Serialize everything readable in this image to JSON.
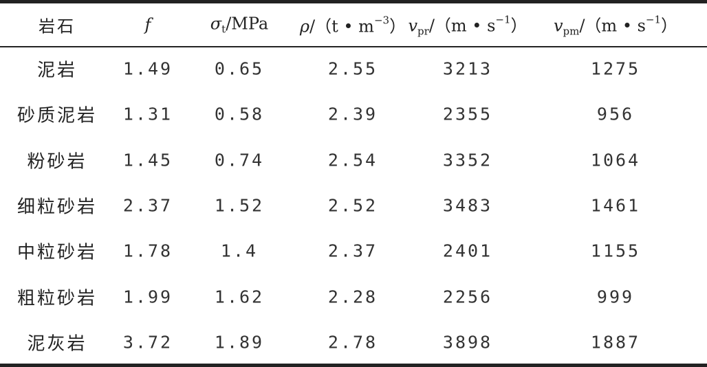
{
  "table": {
    "header": [
      [
        {
          "text": "岩石",
          "style": "normal"
        }
      ],
      [
        {
          "text": "f",
          "style": "italic"
        }
      ],
      [
        {
          "text": "σ",
          "style": "italic"
        },
        {
          "text": "t",
          "style": "sub"
        },
        {
          "text": "/MPa",
          "style": "normal"
        }
      ],
      [
        {
          "text": "ρ",
          "style": "italic"
        },
        {
          "text": "/（t • m",
          "style": "normal"
        },
        {
          "text": "−3",
          "style": "sup"
        },
        {
          "text": "）",
          "style": "normal"
        }
      ],
      [
        {
          "text": "v",
          "style": "italic"
        },
        {
          "text": "pr",
          "style": "sub"
        },
        {
          "text": "/（m • s",
          "style": "normal"
        },
        {
          "text": "−1",
          "style": "sup"
        },
        {
          "text": "）",
          "style": "normal"
        }
      ],
      [
        {
          "text": "v",
          "style": "italic"
        },
        {
          "text": "pm",
          "style": "sub"
        },
        {
          "text": "/（m • s",
          "style": "normal"
        },
        {
          "text": "−1",
          "style": "sup"
        },
        {
          "text": "）",
          "style": "normal"
        }
      ]
    ],
    "rows": [
      [
        "泥岩",
        "1.49",
        "0.65",
        "2.55",
        "3213",
        "1275"
      ],
      [
        "砂质泥岩",
        "1.31",
        "0.58",
        "2.39",
        "2355",
        "956"
      ],
      [
        "粉砂岩",
        "1.45",
        "0.74",
        "2.54",
        "3352",
        "1064"
      ],
      [
        "细粒砂岩",
        "2.37",
        "1.52",
        "2.52",
        "3483",
        "1461"
      ],
      [
        "中粒砂岩",
        "1.78",
        "1.4",
        "2.37",
        "2401",
        "1155"
      ],
      [
        "粗粒砂岩",
        "1.99",
        "1.62",
        "2.28",
        "2256",
        "999"
      ],
      [
        "泥灰岩",
        "3.72",
        "1.89",
        "2.78",
        "3898",
        "1887"
      ]
    ]
  }
}
